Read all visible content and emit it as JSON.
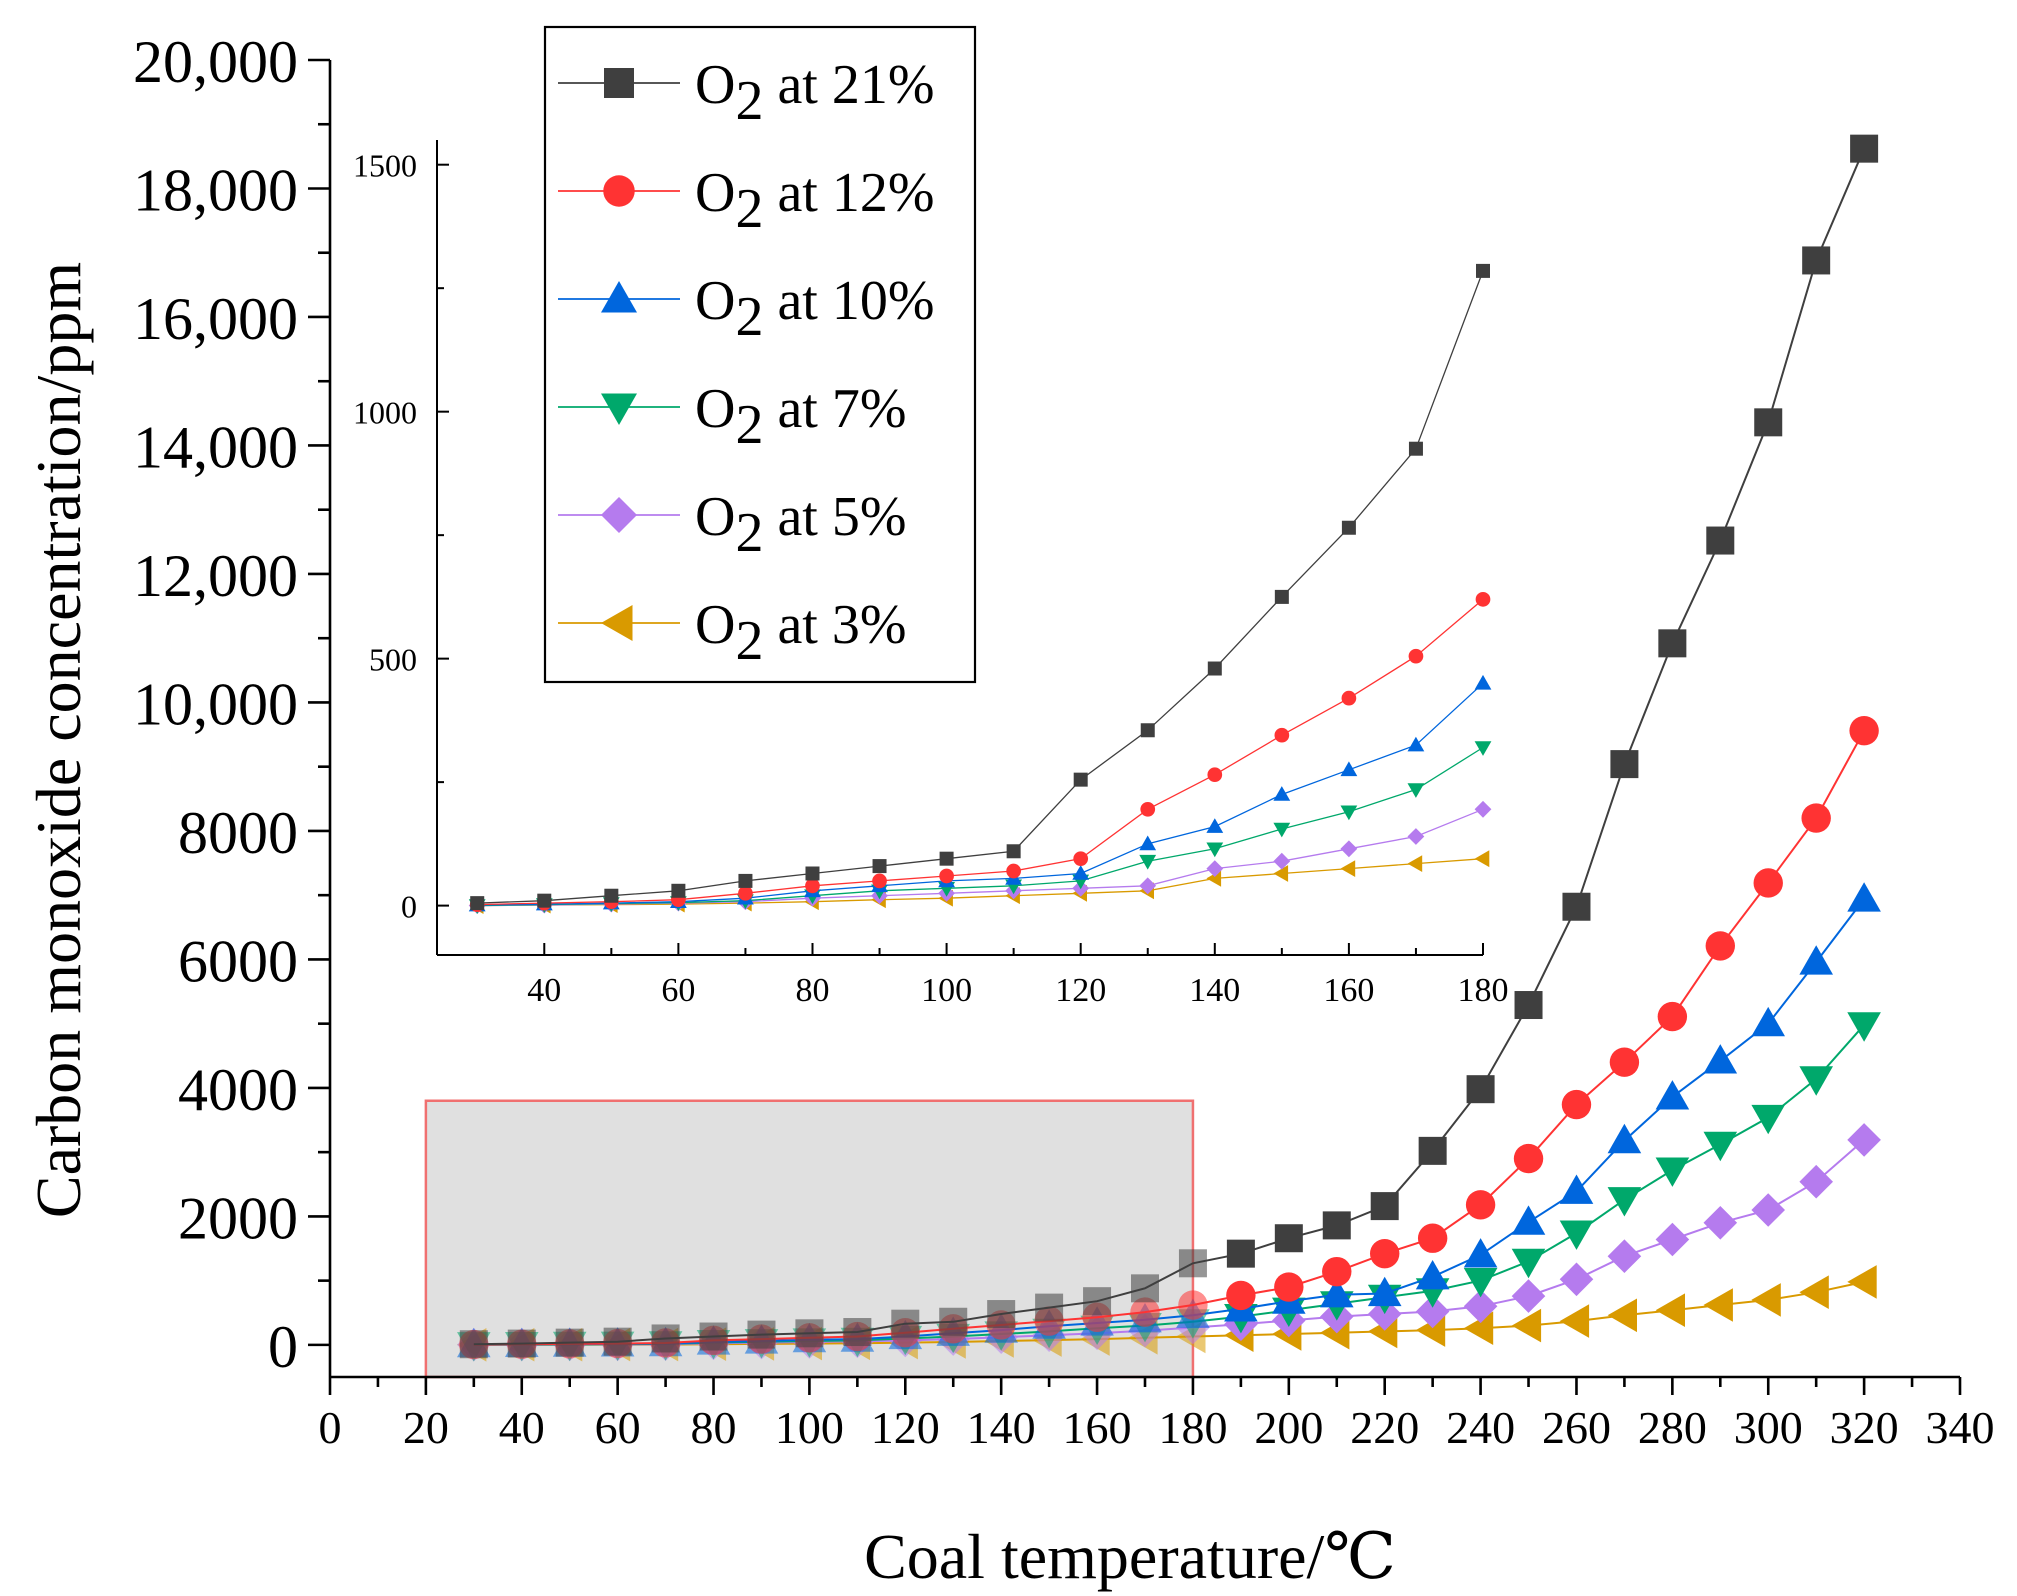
{
  "chart_data": {
    "type": "line",
    "xlabel": "Coal temperature/℃",
    "ylabel": "Carbon monoxide concentration/ppm",
    "xlim": [
      0,
      340
    ],
    "ylim": [
      -500,
      20000
    ],
    "xticks": [
      0,
      20,
      40,
      60,
      80,
      100,
      120,
      140,
      160,
      180,
      200,
      220,
      240,
      260,
      280,
      300,
      320,
      340
    ],
    "xtick_labels": [
      "0",
      "20",
      "40",
      "60",
      "80",
      "100",
      "120",
      "140",
      "160",
      "180",
      "200",
      "220",
      "240",
      "260",
      "280",
      "300",
      "320",
      "340"
    ],
    "yticks": [
      0,
      2000,
      4000,
      6000,
      8000,
      10000,
      12000,
      14000,
      16000,
      18000,
      20000
    ],
    "ytick_labels": [
      "0",
      "2000",
      "4000",
      "6000",
      "8000",
      "10,000",
      "12,000",
      "14,000",
      "16,000",
      "18,000",
      "20,000"
    ],
    "x": [
      30,
      40,
      50,
      60,
      70,
      80,
      90,
      100,
      110,
      120,
      130,
      140,
      150,
      160,
      170,
      180,
      190,
      200,
      210,
      220,
      230,
      240,
      250,
      260,
      270,
      280,
      290,
      300,
      310,
      320
    ],
    "series": [
      {
        "name": "O2 at 21%",
        "name_base": "O",
        "name_sub": "2",
        "name_rest": " at 21%",
        "color": "#3f3f3f",
        "marker": "square",
        "values": [
          10,
          20,
          35,
          50,
          100,
          130,
          160,
          180,
          200,
          330,
          360,
          480,
          580,
          680,
          880,
          1270,
          1420,
          1660,
          1860,
          2160,
          3020,
          3980,
          5290,
          6820,
          9040,
          10920,
          12520,
          14360,
          16880,
          18620
        ]
      },
      {
        "name": "O2 at 12%",
        "name_base": "O",
        "name_sub": "2",
        "name_rest": " at 12%",
        "color": "#ff3333",
        "marker": "circle",
        "values": [
          5,
          10,
          15,
          20,
          30,
          70,
          90,
          110,
          130,
          190,
          250,
          310,
          370,
          430,
          510,
          620,
          770,
          900,
          1140,
          1420,
          1660,
          2180,
          2900,
          3740,
          4400,
          5110,
          6210,
          7190,
          8200,
          9560
        ]
      },
      {
        "name": "O2 at 10%",
        "name_base": "O",
        "name_sub": "2",
        "name_rest": " at 10%",
        "color": "#0066dd",
        "marker": "triangle-up",
        "values": [
          5,
          8,
          10,
          15,
          20,
          45,
          60,
          80,
          90,
          130,
          180,
          230,
          290,
          340,
          390,
          460,
          560,
          680,
          780,
          800,
          1060,
          1400,
          1910,
          2390,
          3180,
          3860,
          4420,
          5000,
          5960,
          6940
        ]
      },
      {
        "name": "O2 at 7%",
        "name_base": "O",
        "name_sub": "2",
        "name_rest": " at 7%",
        "color": "#00a86b",
        "marker": "triangle-down",
        "values": [
          3,
          5,
          8,
          10,
          15,
          35,
          50,
          60,
          70,
          100,
          130,
          170,
          210,
          260,
          300,
          360,
          440,
          540,
          640,
          740,
          840,
          1000,
          1300,
          1740,
          2260,
          2720,
          3120,
          3540,
          4140,
          4980
        ]
      },
      {
        "name": "O2 at 5%",
        "name_base": "O",
        "name_sub": "2",
        "name_rest": " at 5%",
        "color": "#b57bee",
        "marker": "diamond",
        "values": [
          2,
          4,
          6,
          8,
          10,
          25,
          35,
          45,
          55,
          70,
          90,
          120,
          150,
          180,
          220,
          270,
          320,
          380,
          440,
          480,
          520,
          600,
          760,
          1020,
          1380,
          1640,
          1900,
          2100,
          2540,
          3190
        ]
      },
      {
        "name": "O2 at 3%",
        "name_base": "O",
        "name_sub": "2",
        "name_rest": " at 3%",
        "color": "#d99a00",
        "marker": "triangle-left",
        "values": [
          1,
          2,
          3,
          4,
          5,
          10,
          15,
          20,
          25,
          35,
          45,
          60,
          75,
          90,
          110,
          130,
          150,
          170,
          190,
          210,
          230,
          260,
          300,
          370,
          460,
          540,
          620,
          700,
          820,
          980
        ]
      }
    ],
    "legend": {
      "placement": "top-left"
    },
    "highlight_region": {
      "x_range": [
        20,
        180
      ],
      "y_range": [
        -500,
        3800
      ],
      "fill": "#e0e0e0",
      "stroke": "#f07070"
    },
    "inset": {
      "xlim": [
        24,
        180
      ],
      "ylim": [
        -100,
        1550
      ],
      "xticks": [
        40,
        60,
        80,
        100,
        120,
        140,
        160,
        180
      ],
      "xtick_labels": [
        "40",
        "60",
        "80",
        "100",
        "120",
        "140",
        "160",
        "180"
      ],
      "yticks": [
        0,
        500,
        1000,
        1500
      ],
      "ytick_labels": [
        "0",
        "500",
        "1000",
        "1500"
      ],
      "x": [
        30,
        40,
        50,
        60,
        70,
        80,
        90,
        100,
        110,
        120,
        130,
        140,
        150,
        160,
        170,
        180
      ],
      "series_values": [
        [
          5,
          10,
          20,
          30,
          50,
          65,
          80,
          95,
          110,
          255,
          355,
          480,
          625,
          765,
          925,
          1285
        ],
        [
          2,
          5,
          8,
          12,
          25,
          40,
          50,
          60,
          70,
          95,
          195,
          265,
          345,
          420,
          505,
          620
        ],
        [
          1,
          3,
          5,
          8,
          15,
          30,
          40,
          50,
          55,
          65,
          125,
          160,
          225,
          275,
          325,
          450
        ],
        [
          0,
          2,
          4,
          6,
          10,
          20,
          30,
          35,
          40,
          50,
          90,
          115,
          155,
          190,
          235,
          320
        ],
        [
          0,
          1,
          3,
          5,
          8,
          15,
          20,
          25,
          30,
          35,
          40,
          75,
          90,
          115,
          140,
          195
        ],
        [
          0,
          1,
          2,
          3,
          5,
          8,
          12,
          15,
          20,
          25,
          30,
          55,
          65,
          75,
          85,
          95
        ]
      ]
    }
  }
}
